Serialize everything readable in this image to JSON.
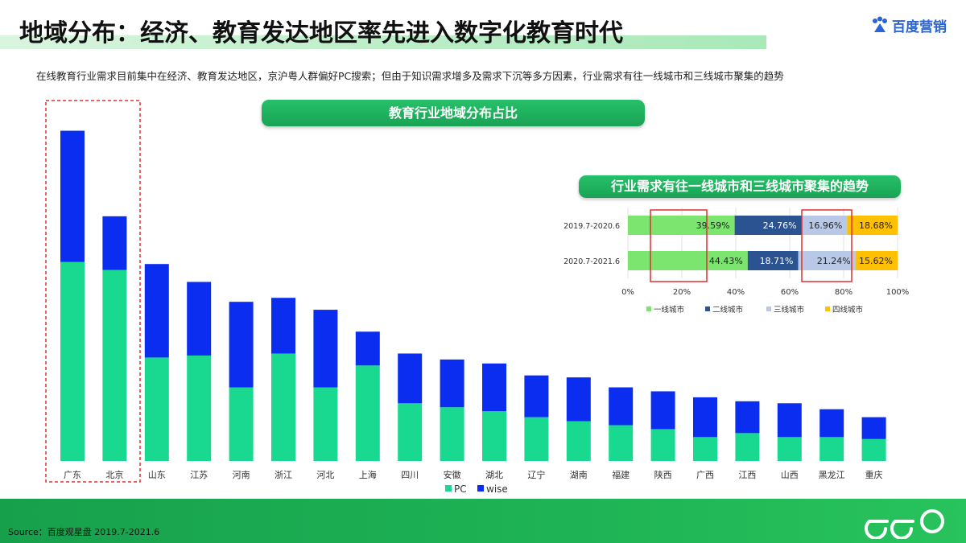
{
  "header": {
    "title": "地域分布：经济、教育发达地区率先进入数字化教育时代",
    "logo_text": "百度营销",
    "subtitle": "在线教育行业需求目前集中在经济、教育发达地区，京沪粤人群偏好PC搜索；但由于知识需求增多及需求下沉等多方因素，行业需求有往一线城市和三线城市聚集的趋势"
  },
  "main_chart_title": "教育行业地域分布占比",
  "sub_chart_title": "行业需求有往一线城市和三线城市聚集的趋势",
  "footer": {
    "source": "Source：百度观星盘 2019.7-2021.6",
    "logo_text": "eeo"
  },
  "colors": {
    "pc": "#19d88f",
    "wise": "#0a2df0",
    "tier1": "#7be56f",
    "tier2": "#2c5391",
    "tier3": "#b8c8e6",
    "tier4": "#ffc000",
    "highlight": "#e03030",
    "green": "#1fb25a"
  },
  "chart_data": [
    {
      "type": "bar",
      "stacked": true,
      "title": "教育行业地域分布占比",
      "categories": [
        "广东",
        "北京",
        "山东",
        "江苏",
        "河南",
        "浙江",
        "河北",
        "上海",
        "四川",
        "安徽",
        "湖北",
        "辽宁",
        "湖南",
        "福建",
        "陕西",
        "广西",
        "江西",
        "山西",
        "黑龙江",
        "重庆"
      ],
      "series": [
        {
          "name": "PC",
          "values": [
            100,
            96,
            52,
            53,
            37,
            54,
            37,
            48,
            29,
            27,
            25,
            22,
            20,
            18,
            16,
            12,
            14,
            12,
            12,
            11
          ]
        },
        {
          "name": "wise",
          "values": [
            66,
            27,
            47,
            37,
            43,
            28,
            39,
            17,
            25,
            24,
            24,
            21,
            22,
            19,
            19,
            20,
            16,
            17,
            14,
            11
          ]
        }
      ],
      "ylim": [
        0,
        170
      ],
      "legend": [
        "PC",
        "wise"
      ],
      "legend_position": "bottom",
      "highlight_categories": [
        "广东",
        "北京"
      ]
    },
    {
      "type": "bar",
      "orientation": "horizontal",
      "stacked": true,
      "normalized": true,
      "title": "行业需求有往一线城市和三线城市聚集的趋势",
      "categories": [
        "2019.7-2020.6",
        "2020.7-2021.6"
      ],
      "series": [
        {
          "name": "一线城市",
          "values": [
            39.59,
            44.43
          ],
          "labels": [
            "39.59%",
            "44.43%"
          ]
        },
        {
          "name": "二线城市",
          "values": [
            24.76,
            18.71
          ],
          "labels": [
            "24.76%",
            "18.71%"
          ]
        },
        {
          "name": "三线城市",
          "values": [
            16.96,
            21.24
          ],
          "labels": [
            "16.96%",
            "21.24%"
          ]
        },
        {
          "name": "四线城市",
          "values": [
            18.68,
            15.62
          ],
          "labels": [
            "18.68%",
            "15.62%"
          ]
        }
      ],
      "xlim": [
        0,
        100
      ],
      "xticks": [
        "0%",
        "20%",
        "40%",
        "60%",
        "80%",
        "100%"
      ],
      "legend_position": "bottom",
      "highlight_series": [
        "一线城市",
        "三线城市"
      ]
    }
  ]
}
